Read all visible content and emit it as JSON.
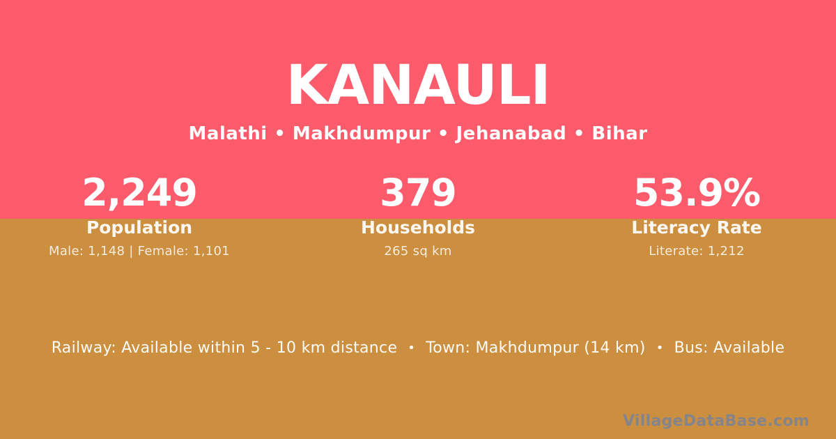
{
  "colors": {
    "pink": "#FC5B6C",
    "gold": "#CB8F3F",
    "text_white": "#FFFFFF",
    "watermark_gray": "#84848C"
  },
  "header": {
    "title": "KANAULI",
    "subtitle": "Malathi • Makhdumpur • Jehanabad • Bihar"
  },
  "stats": [
    {
      "value": "2,249",
      "label": "Population",
      "detail": "Male: 1,148 | Female: 1,101"
    },
    {
      "value": "379",
      "label": "Households",
      "detail": "265 sq km"
    },
    {
      "value": "53.9%",
      "label": "Literacy Rate",
      "detail": "Literate: 1,212"
    }
  ],
  "footer": {
    "separator": "•",
    "items": [
      "Railway: Available within 5 - 10 km distance",
      "Town: Makhdumpur (14 km)",
      "Bus: Available"
    ],
    "watermark": "VillageDataBase.com"
  }
}
